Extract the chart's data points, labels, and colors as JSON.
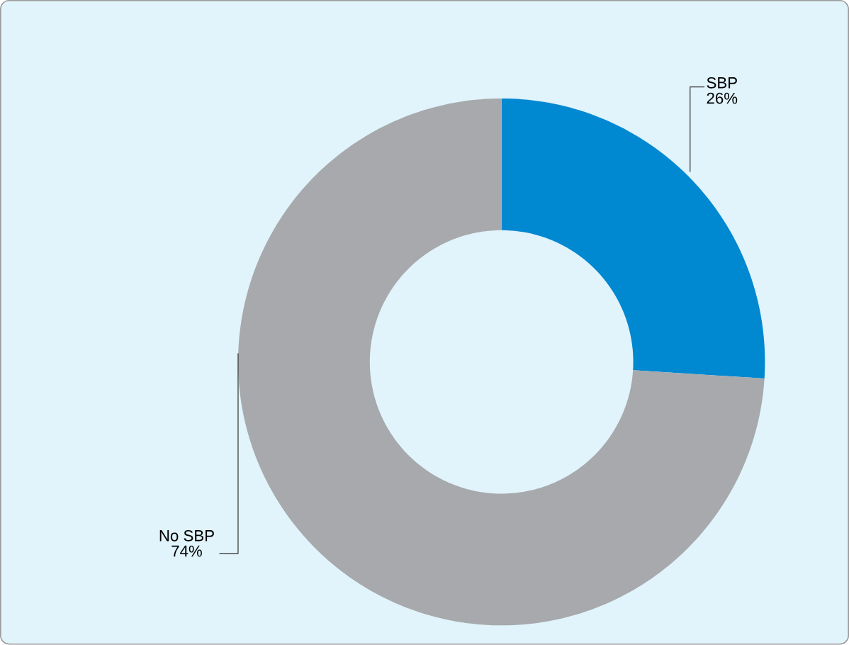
{
  "chart_data": {
    "type": "donut",
    "categories": [
      "SBP",
      "No SBP"
    ],
    "values": [
      26,
      74
    ],
    "value_labels": [
      "26%",
      "74%"
    ],
    "colors": [
      "#0088d1",
      "#a7a9ac"
    ]
  }
}
